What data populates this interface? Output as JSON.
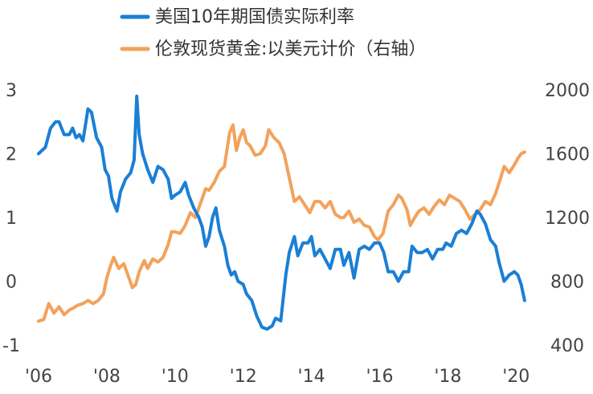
{
  "chart_data": {
    "type": "line",
    "x_unit": "year",
    "left_axis": {
      "ticks": [
        3,
        2,
        1,
        0,
        -1
      ],
      "tick_labels": [
        "3",
        "2",
        "1",
        "0",
        "-1"
      ],
      "range": [
        -1,
        3
      ]
    },
    "right_axis": {
      "ticks": [
        2000,
        1600,
        1200,
        800,
        400
      ],
      "tick_labels": [
        "2000",
        "1600",
        "1200",
        "800",
        "400"
      ],
      "range": [
        400,
        2000
      ]
    },
    "x_axis": {
      "ticks": [
        2006,
        2008,
        2010,
        2012,
        2014,
        2016,
        2018,
        2020
      ],
      "tick_labels": [
        "'06",
        "'08",
        "'10",
        "'12",
        "'14",
        "'16",
        "'18",
        "'20"
      ],
      "range": [
        2006,
        2020.3
      ]
    },
    "grid": false,
    "legend_placement": "top-center",
    "series": [
      {
        "name": "美国10年期国债实际利率",
        "axis": "left",
        "color": "#1a7fd6",
        "points": [
          [
            2006.0,
            2.0
          ],
          [
            2006.2,
            2.1
          ],
          [
            2006.35,
            2.4
          ],
          [
            2006.5,
            2.5
          ],
          [
            2006.6,
            2.5
          ],
          [
            2006.75,
            2.3
          ],
          [
            2006.9,
            2.3
          ],
          [
            2007.0,
            2.4
          ],
          [
            2007.1,
            2.25
          ],
          [
            2007.2,
            2.3
          ],
          [
            2007.3,
            2.2
          ],
          [
            2007.45,
            2.7
          ],
          [
            2007.55,
            2.65
          ],
          [
            2007.7,
            2.25
          ],
          [
            2007.85,
            2.1
          ],
          [
            2007.95,
            1.75
          ],
          [
            2008.05,
            1.65
          ],
          [
            2008.15,
            1.3
          ],
          [
            2008.3,
            1.1
          ],
          [
            2008.4,
            1.4
          ],
          [
            2008.55,
            1.6
          ],
          [
            2008.7,
            1.7
          ],
          [
            2008.8,
            1.9
          ],
          [
            2008.88,
            2.9
          ],
          [
            2008.95,
            2.3
          ],
          [
            2009.05,
            2.0
          ],
          [
            2009.2,
            1.75
          ],
          [
            2009.35,
            1.55
          ],
          [
            2009.5,
            1.8
          ],
          [
            2009.65,
            1.75
          ],
          [
            2009.8,
            1.6
          ],
          [
            2009.9,
            1.3
          ],
          [
            2010.0,
            1.35
          ],
          [
            2010.15,
            1.4
          ],
          [
            2010.3,
            1.55
          ],
          [
            2010.4,
            1.35
          ],
          [
            2010.55,
            1.15
          ],
          [
            2010.7,
            1.0
          ],
          [
            2010.8,
            0.85
          ],
          [
            2010.9,
            0.55
          ],
          [
            2011.0,
            0.7
          ],
          [
            2011.1,
            1.0
          ],
          [
            2011.2,
            1.15
          ],
          [
            2011.3,
            0.8
          ],
          [
            2011.45,
            0.55
          ],
          [
            2011.55,
            0.25
          ],
          [
            2011.65,
            0.1
          ],
          [
            2011.75,
            0.15
          ],
          [
            2011.85,
            0.0
          ],
          [
            2012.0,
            -0.05
          ],
          [
            2012.1,
            -0.2
          ],
          [
            2012.25,
            -0.3
          ],
          [
            2012.4,
            -0.55
          ],
          [
            2012.55,
            -0.72
          ],
          [
            2012.7,
            -0.75
          ],
          [
            2012.85,
            -0.7
          ],
          [
            2012.95,
            -0.58
          ],
          [
            2013.1,
            -0.62
          ],
          [
            2013.25,
            0.1
          ],
          [
            2013.35,
            0.45
          ],
          [
            2013.5,
            0.7
          ],
          [
            2013.6,
            0.4
          ],
          [
            2013.75,
            0.6
          ],
          [
            2013.9,
            0.6
          ],
          [
            2014.0,
            0.7
          ],
          [
            2014.1,
            0.4
          ],
          [
            2014.25,
            0.5
          ],
          [
            2014.4,
            0.35
          ],
          [
            2014.55,
            0.2
          ],
          [
            2014.7,
            0.5
          ],
          [
            2014.85,
            0.5
          ],
          [
            2014.95,
            0.25
          ],
          [
            2015.1,
            0.45
          ],
          [
            2015.25,
            0.05
          ],
          [
            2015.4,
            0.5
          ],
          [
            2015.55,
            0.55
          ],
          [
            2015.7,
            0.5
          ],
          [
            2015.85,
            0.6
          ],
          [
            2016.0,
            0.6
          ],
          [
            2016.12,
            0.45
          ],
          [
            2016.25,
            0.15
          ],
          [
            2016.4,
            0.15
          ],
          [
            2016.55,
            0.0
          ],
          [
            2016.7,
            0.15
          ],
          [
            2016.85,
            0.15
          ],
          [
            2016.95,
            0.55
          ],
          [
            2017.1,
            0.45
          ],
          [
            2017.25,
            0.45
          ],
          [
            2017.4,
            0.5
          ],
          [
            2017.55,
            0.35
          ],
          [
            2017.7,
            0.5
          ],
          [
            2017.85,
            0.5
          ],
          [
            2017.95,
            0.6
          ],
          [
            2018.1,
            0.55
          ],
          [
            2018.25,
            0.75
          ],
          [
            2018.4,
            0.8
          ],
          [
            2018.55,
            0.75
          ],
          [
            2018.7,
            0.9
          ],
          [
            2018.85,
            1.1
          ],
          [
            2018.95,
            1.05
          ],
          [
            2019.1,
            0.9
          ],
          [
            2019.25,
            0.65
          ],
          [
            2019.4,
            0.55
          ],
          [
            2019.5,
            0.3
          ],
          [
            2019.65,
            0.0
          ],
          [
            2019.8,
            0.1
          ],
          [
            2019.95,
            0.15
          ],
          [
            2020.05,
            0.1
          ],
          [
            2020.15,
            -0.05
          ],
          [
            2020.25,
            -0.3
          ]
        ]
      },
      {
        "name": "伦敦现货黄金:以美元计价（右轴）",
        "axis": "right",
        "color": "#f2a25c",
        "points": [
          [
            2006.0,
            550
          ],
          [
            2006.15,
            560
          ],
          [
            2006.3,
            660
          ],
          [
            2006.45,
            600
          ],
          [
            2006.6,
            640
          ],
          [
            2006.75,
            590
          ],
          [
            2006.9,
            620
          ],
          [
            2007.0,
            630
          ],
          [
            2007.15,
            650
          ],
          [
            2007.3,
            660
          ],
          [
            2007.45,
            680
          ],
          [
            2007.6,
            660
          ],
          [
            2007.75,
            680
          ],
          [
            2007.9,
            720
          ],
          [
            2008.0,
            820
          ],
          [
            2008.1,
            890
          ],
          [
            2008.2,
            950
          ],
          [
            2008.35,
            880
          ],
          [
            2008.5,
            910
          ],
          [
            2008.65,
            820
          ],
          [
            2008.75,
            760
          ],
          [
            2008.85,
            780
          ],
          [
            2008.95,
            860
          ],
          [
            2009.1,
            930
          ],
          [
            2009.2,
            880
          ],
          [
            2009.35,
            940
          ],
          [
            2009.5,
            920
          ],
          [
            2009.65,
            950
          ],
          [
            2009.8,
            1030
          ],
          [
            2009.9,
            1110
          ],
          [
            2010.0,
            1110
          ],
          [
            2010.15,
            1100
          ],
          [
            2010.3,
            1150
          ],
          [
            2010.45,
            1230
          ],
          [
            2010.6,
            1200
          ],
          [
            2010.75,
            1290
          ],
          [
            2010.9,
            1380
          ],
          [
            2011.0,
            1370
          ],
          [
            2011.15,
            1420
          ],
          [
            2011.3,
            1490
          ],
          [
            2011.45,
            1520
          ],
          [
            2011.6,
            1730
          ],
          [
            2011.7,
            1780
          ],
          [
            2011.8,
            1620
          ],
          [
            2011.9,
            1700
          ],
          [
            2012.0,
            1750
          ],
          [
            2012.1,
            1670
          ],
          [
            2012.2,
            1650
          ],
          [
            2012.35,
            1590
          ],
          [
            2012.5,
            1600
          ],
          [
            2012.65,
            1650
          ],
          [
            2012.75,
            1750
          ],
          [
            2012.9,
            1700
          ],
          [
            2013.05,
            1670
          ],
          [
            2013.2,
            1600
          ],
          [
            2013.35,
            1450
          ],
          [
            2013.5,
            1300
          ],
          [
            2013.65,
            1330
          ],
          [
            2013.8,
            1280
          ],
          [
            2013.95,
            1230
          ],
          [
            2014.1,
            1300
          ],
          [
            2014.25,
            1300
          ],
          [
            2014.4,
            1260
          ],
          [
            2014.55,
            1300
          ],
          [
            2014.7,
            1220
          ],
          [
            2014.85,
            1200
          ],
          [
            2014.95,
            1200
          ],
          [
            2015.1,
            1240
          ],
          [
            2015.25,
            1170
          ],
          [
            2015.4,
            1190
          ],
          [
            2015.55,
            1150
          ],
          [
            2015.7,
            1140
          ],
          [
            2015.85,
            1080
          ],
          [
            2015.95,
            1060
          ],
          [
            2016.1,
            1100
          ],
          [
            2016.25,
            1240
          ],
          [
            2016.4,
            1280
          ],
          [
            2016.55,
            1340
          ],
          [
            2016.65,
            1320
          ],
          [
            2016.8,
            1250
          ],
          [
            2016.9,
            1150
          ],
          [
            2017.0,
            1190
          ],
          [
            2017.15,
            1240
          ],
          [
            2017.3,
            1260
          ],
          [
            2017.45,
            1220
          ],
          [
            2017.6,
            1270
          ],
          [
            2017.75,
            1310
          ],
          [
            2017.9,
            1280
          ],
          [
            2018.05,
            1340
          ],
          [
            2018.2,
            1320
          ],
          [
            2018.35,
            1300
          ],
          [
            2018.5,
            1250
          ],
          [
            2018.65,
            1190
          ],
          [
            2018.8,
            1220
          ],
          [
            2018.95,
            1250
          ],
          [
            2019.1,
            1300
          ],
          [
            2019.25,
            1280
          ],
          [
            2019.4,
            1350
          ],
          [
            2019.55,
            1450
          ],
          [
            2019.65,
            1520
          ],
          [
            2019.8,
            1480
          ],
          [
            2019.95,
            1530
          ],
          [
            2020.05,
            1570
          ],
          [
            2020.15,
            1600
          ],
          [
            2020.25,
            1610
          ]
        ]
      }
    ]
  }
}
